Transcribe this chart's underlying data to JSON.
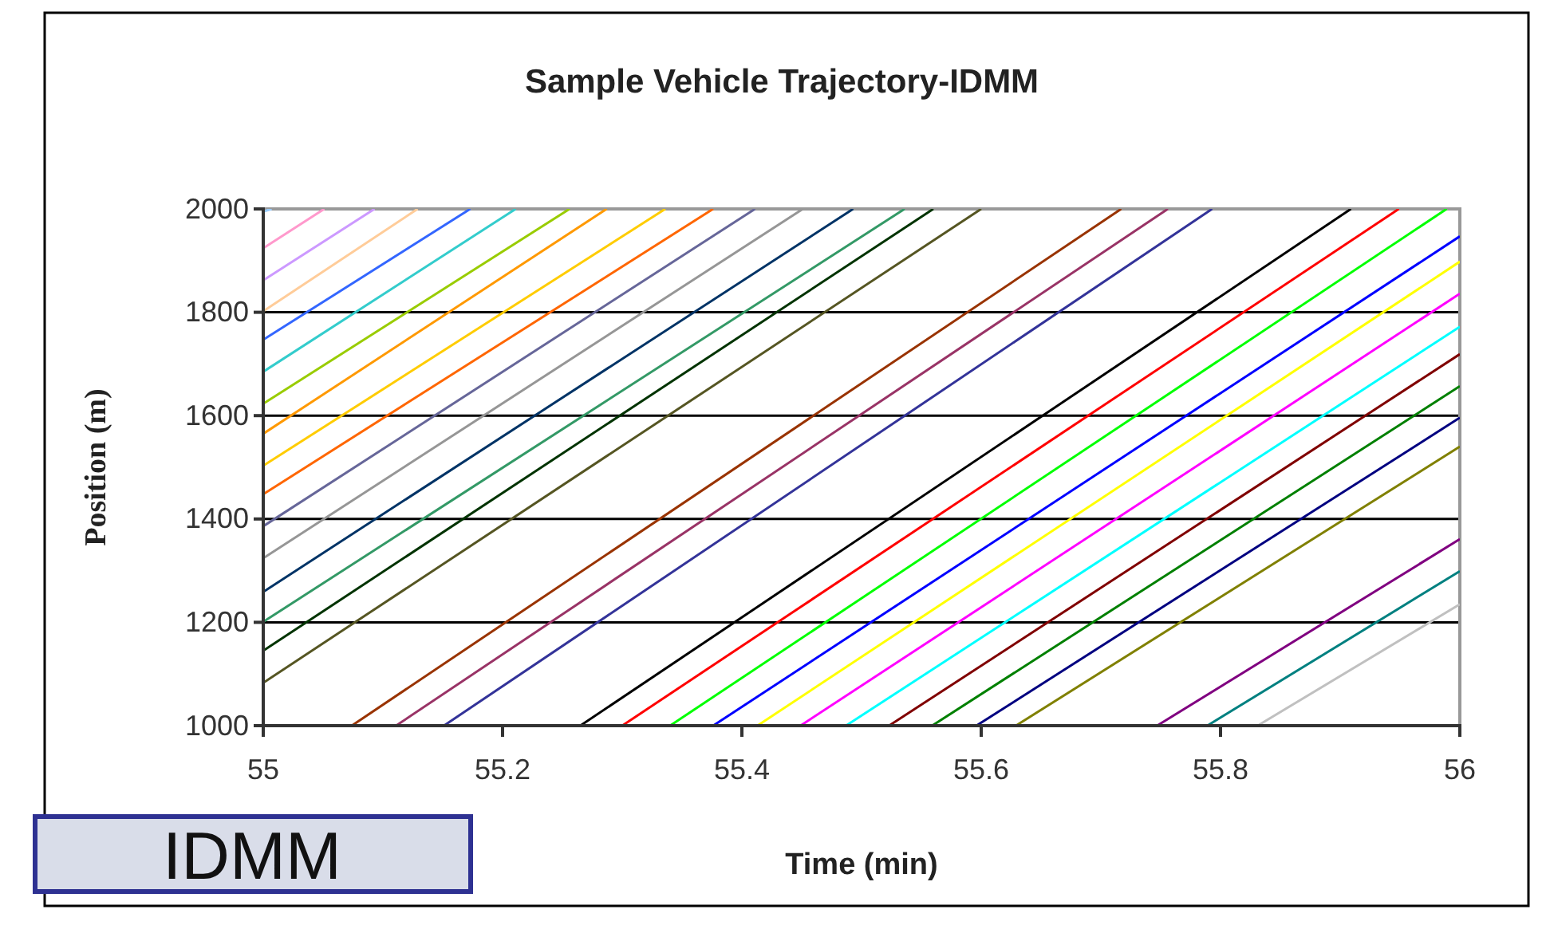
{
  "chart_data": {
    "type": "line",
    "title": "Sample Vehicle Trajectory-IDMM",
    "xlabel": "Time (min)",
    "ylabel": "Position (m)",
    "xlim": [
      55,
      56
    ],
    "xticks": [
      55,
      55.2,
      55.4,
      55.6,
      55.8,
      56
    ],
    "ylim": [
      1000,
      2000
    ],
    "yticks": [
      1000,
      1200,
      1400,
      1600,
      1800,
      2000
    ],
    "grid": "y",
    "annotations": [
      "IDMM"
    ],
    "series": [
      {
        "color": "#99ccff",
        "x": [
          55,
          55.007
        ],
        "values": [
          1995,
          2000
        ]
      },
      {
        "color": "#ff99cc",
        "x": [
          55,
          55.051
        ],
        "values": [
          1924,
          2000
        ]
      },
      {
        "color": "#cc99ff",
        "x": [
          55,
          55.093
        ],
        "values": [
          1862,
          2000
        ]
      },
      {
        "color": "#ffcc99",
        "x": [
          55,
          55.129
        ],
        "values": [
          1802,
          2000
        ]
      },
      {
        "color": "#3366ff",
        "x": [
          55,
          55.173
        ],
        "values": [
          1747,
          2000
        ]
      },
      {
        "color": "#33cccc",
        "x": [
          55,
          55.211
        ],
        "values": [
          1685,
          2000
        ]
      },
      {
        "color": "#99cc00",
        "x": [
          55,
          55.256
        ],
        "values": [
          1623,
          2000
        ]
      },
      {
        "color": "#ff9900",
        "x": [
          55,
          55.287
        ],
        "values": [
          1565,
          2000
        ]
      },
      {
        "color": "#ffcc00",
        "x": [
          55,
          55.336
        ],
        "values": [
          1503,
          2000
        ]
      },
      {
        "color": "#ff6600",
        "x": [
          55,
          55.376
        ],
        "values": [
          1448,
          2000
        ]
      },
      {
        "color": "#666699",
        "x": [
          55,
          55.411
        ],
        "values": [
          1386,
          2000
        ]
      },
      {
        "color": "#969696",
        "x": [
          55,
          55.451
        ],
        "values": [
          1324,
          2000
        ]
      },
      {
        "color": "#003366",
        "x": [
          55,
          55.493
        ],
        "values": [
          1259,
          2000
        ]
      },
      {
        "color": "#339966",
        "x": [
          55,
          55.536
        ],
        "values": [
          1201,
          2000
        ]
      },
      {
        "color": "#003300",
        "x": [
          55,
          55.56
        ],
        "values": [
          1145,
          2000
        ]
      },
      {
        "color": "#555522",
        "x": [
          55,
          55.6
        ],
        "values": [
          1083,
          2000
        ]
      },
      {
        "color": "#993300",
        "x": [
          55.074,
          55.717
        ],
        "values": [
          1000,
          2000
        ]
      },
      {
        "color": "#993366",
        "x": [
          55.111,
          55.756
        ],
        "values": [
          1000,
          2000
        ]
      },
      {
        "color": "#333399",
        "x": [
          55.151,
          55.793
        ],
        "values": [
          1000,
          2000
        ]
      },
      {
        "color": "#000000",
        "x": [
          55.265,
          55.909
        ],
        "values": [
          1000,
          2000
        ]
      },
      {
        "color": "#ff0000",
        "x": [
          55.3,
          55.949
        ],
        "values": [
          1000,
          2000
        ]
      },
      {
        "color": "#00ff00",
        "x": [
          55.34,
          55.989
        ],
        "values": [
          1000,
          2000
        ]
      },
      {
        "color": "#0000ff",
        "x": [
          55.376,
          56
        ],
        "values": [
          1000,
          1947
        ]
      },
      {
        "color": "#ffff00",
        "x": [
          55.413,
          56
        ],
        "values": [
          1000,
          1898
        ]
      },
      {
        "color": "#ff00ff",
        "x": [
          55.449,
          56
        ],
        "values": [
          1000,
          1836
        ]
      },
      {
        "color": "#00ffff",
        "x": [
          55.487,
          56
        ],
        "values": [
          1000,
          1772
        ]
      },
      {
        "color": "#800000",
        "x": [
          55.523,
          56
        ],
        "values": [
          1000,
          1719
        ]
      },
      {
        "color": "#008000",
        "x": [
          55.559,
          56
        ],
        "values": [
          1000,
          1657
        ]
      },
      {
        "color": "#000080",
        "x": [
          55.596,
          56
        ],
        "values": [
          1000,
          1596
        ]
      },
      {
        "color": "#808000",
        "x": [
          55.629,
          56
        ],
        "values": [
          1000,
          1540
        ]
      },
      {
        "color": "#800080",
        "x": [
          55.747,
          56
        ],
        "values": [
          1000,
          1361
        ]
      },
      {
        "color": "#008080",
        "x": [
          55.789,
          56
        ],
        "values": [
          1000,
          1299
        ]
      },
      {
        "color": "#c0c0c0",
        "x": [
          55.831,
          56
        ],
        "values": [
          1000,
          1235
        ]
      }
    ]
  }
}
